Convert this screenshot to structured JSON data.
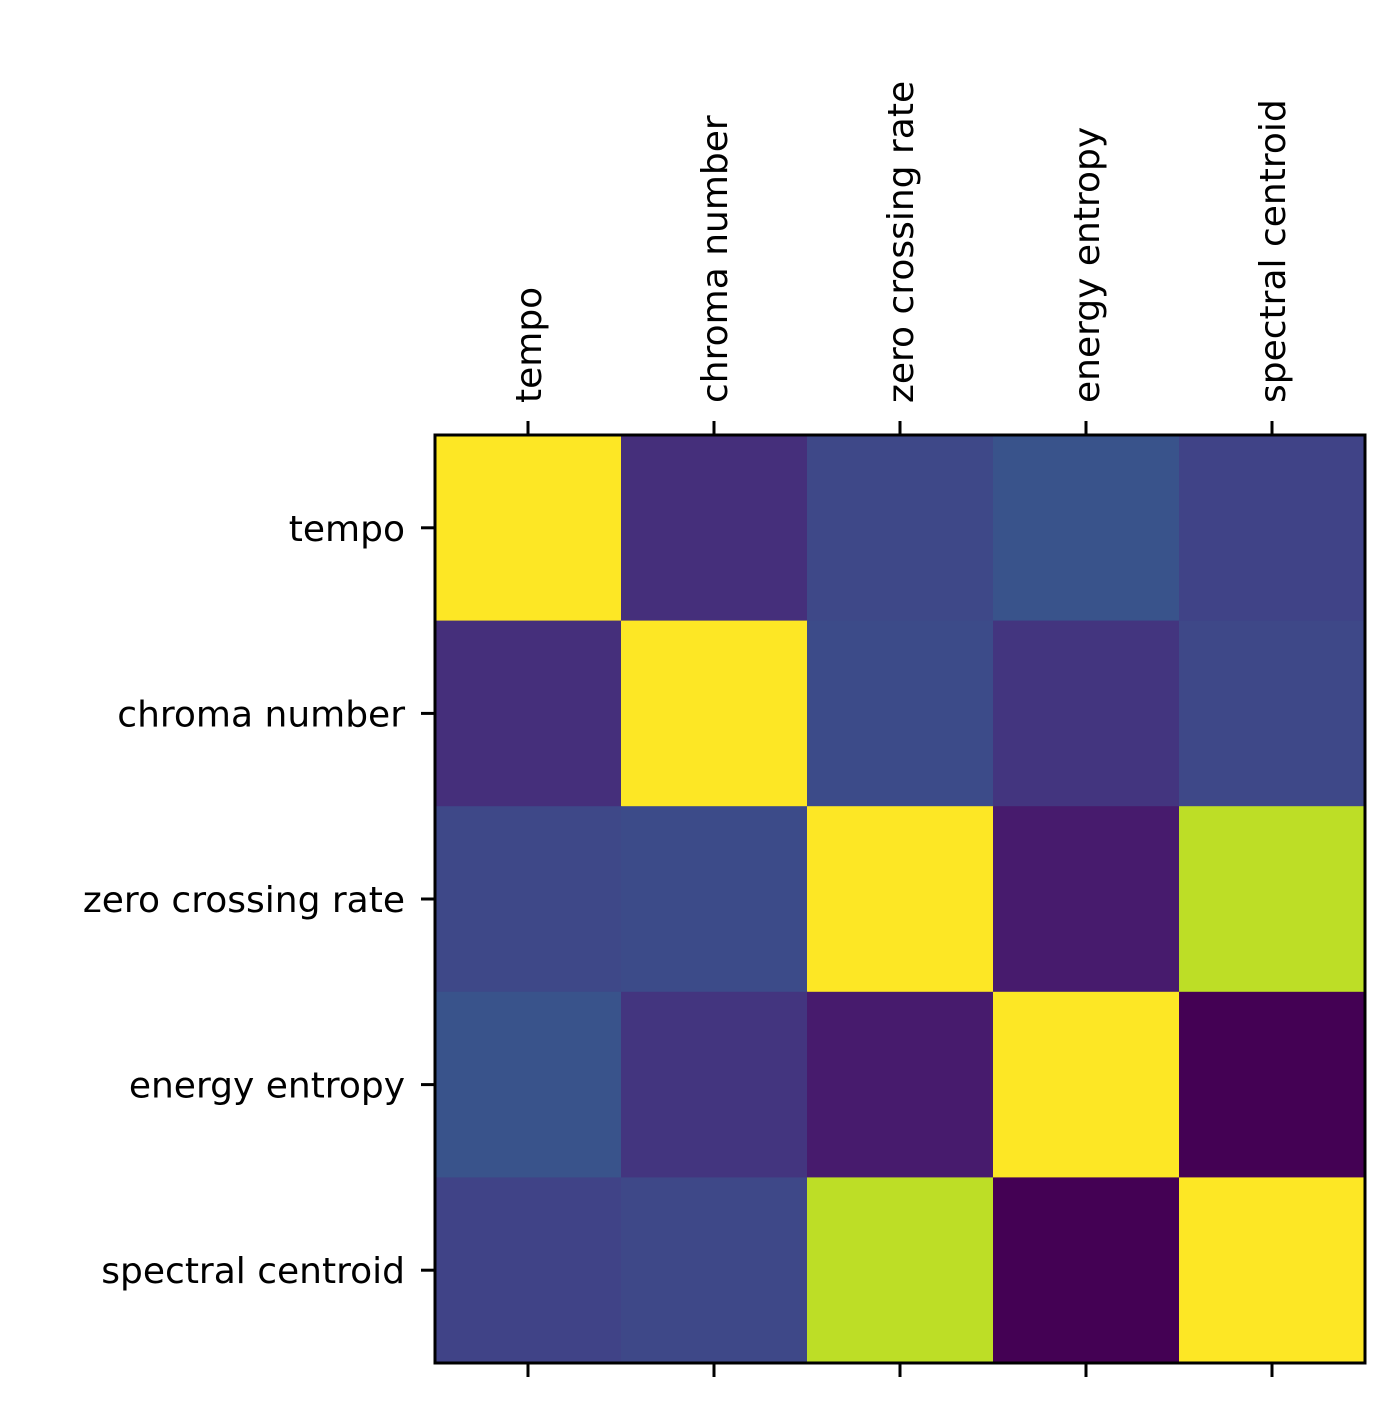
{
  "chart_data": {
    "type": "heatmap",
    "categories": [
      "tempo",
      "chroma number",
      "zero crossing rate",
      "energy entropy",
      "spectral centroid"
    ],
    "x_axis_position": "top",
    "colormap": "viridis",
    "colorbar": false,
    "values": [
      [
        1.0,
        0.14,
        0.22,
        0.26,
        0.2
      ],
      [
        0.14,
        1.0,
        0.23,
        0.16,
        0.22
      ],
      [
        0.22,
        0.23,
        1.0,
        0.08,
        0.9
      ],
      [
        0.26,
        0.16,
        0.08,
        1.0,
        0.0
      ],
      [
        0.2,
        0.22,
        0.9,
        0.0,
        1.0
      ]
    ]
  }
}
